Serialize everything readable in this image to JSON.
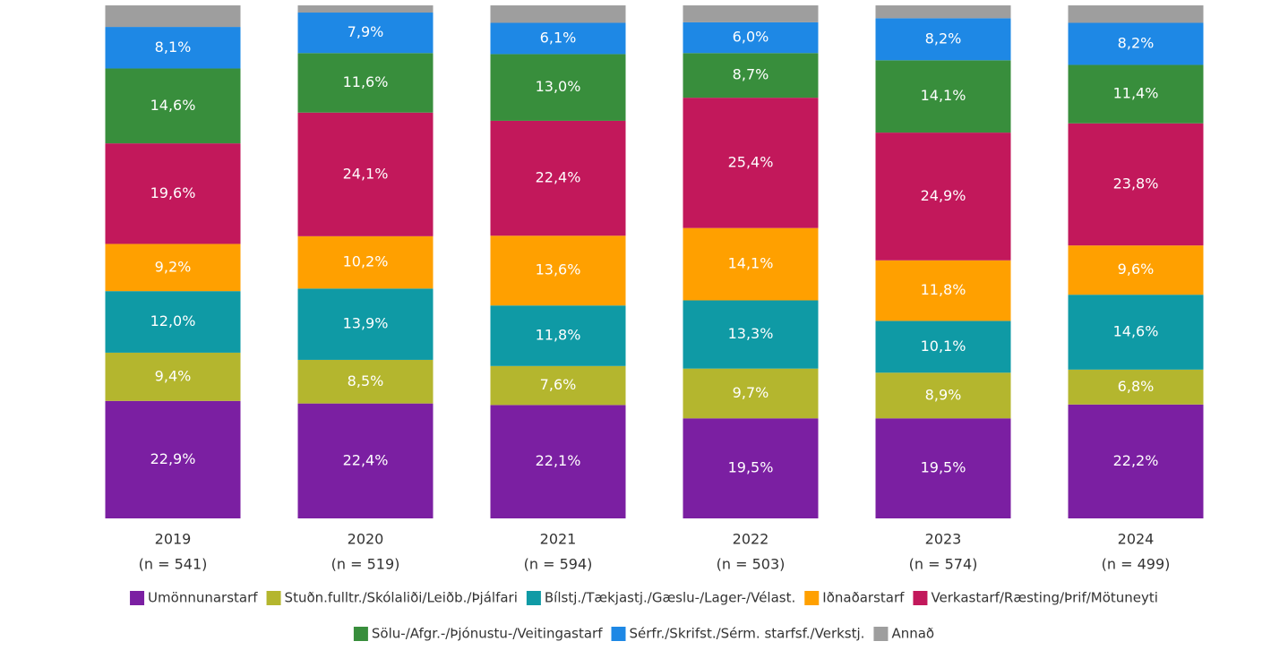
{
  "chart_data": {
    "type": "stacked_bar",
    "categories": [
      "2019",
      "2020",
      "2021",
      "2022",
      "2023",
      "2024"
    ],
    "sample_labels": [
      "(n = 541)",
      "(n = 519)",
      "(n = 594)",
      "(n = 503)",
      "(n = 574)",
      "(n = 499)"
    ],
    "ylim": [
      0,
      100
    ],
    "series": [
      {
        "name": "Umönnunarstarf",
        "color": "#7b1fa2",
        "values": [
          22.9,
          22.4,
          22.1,
          19.5,
          19.5,
          22.2
        ],
        "value_labels": [
          "22,9%",
          "22,4%",
          "22,1%",
          "19,5%",
          "19,5%",
          "22,2%"
        ]
      },
      {
        "name": "Stuðn.fulltr./Skólaliði/Leiðb./Þjálfari",
        "color": "#b4b62e",
        "values": [
          9.4,
          8.5,
          7.6,
          9.7,
          8.9,
          6.8
        ],
        "value_labels": [
          "9,4%",
          "8,5%",
          "7,6%",
          "9,7%",
          "8,9%",
          "6,8%"
        ]
      },
      {
        "name": "Bílstj./Tækjastj./Gæslu-/Lager-/Vélast.",
        "color": "#0f9aa5",
        "values": [
          12.0,
          13.9,
          11.8,
          13.3,
          10.1,
          14.6
        ],
        "value_labels": [
          "12,0%",
          "13,9%",
          "11,8%",
          "13,3%",
          "10,1%",
          "14,6%"
        ]
      },
      {
        "name": "Iðnaðarstarf",
        "color": "#ffa000",
        "values": [
          9.2,
          10.2,
          13.6,
          14.1,
          11.8,
          9.6
        ],
        "value_labels": [
          "9,2%",
          "10,2%",
          "13,6%",
          "14,1%",
          "11,8%",
          "9,6%"
        ]
      },
      {
        "name": "Verkastarf/Ræsting/Þrif/Mötuneyti",
        "color": "#c2185b",
        "values": [
          19.6,
          24.1,
          22.4,
          25.4,
          24.9,
          23.8
        ],
        "value_labels": [
          "19,6%",
          "24,1%",
          "22,4%",
          "25,4%",
          "24,9%",
          "23,8%"
        ]
      },
      {
        "name": "Sölu-/Afgr.-/Þjónustu-/Veitingastarf",
        "color": "#388e3c",
        "values": [
          14.6,
          11.6,
          13.0,
          8.7,
          14.1,
          11.4
        ],
        "value_labels": [
          "14,6%",
          "11,6%",
          "13,0%",
          "8,7%",
          "14,1%",
          "11,4%"
        ]
      },
      {
        "name": "Sérfr./Skrifst./Sérm. starfsf./Verkstj.",
        "color": "#1e88e5",
        "values": [
          8.1,
          7.9,
          6.1,
          6.0,
          8.2,
          8.2
        ],
        "value_labels": [
          "8,1%",
          "7,9%",
          "6,1%",
          "6,0%",
          "8,2%",
          "8,2%"
        ]
      },
      {
        "name": "Annað",
        "color": "#9e9e9e",
        "values": [
          4.2,
          1.4,
          3.4,
          3.3,
          2.5,
          3.4
        ]
      }
    ]
  }
}
